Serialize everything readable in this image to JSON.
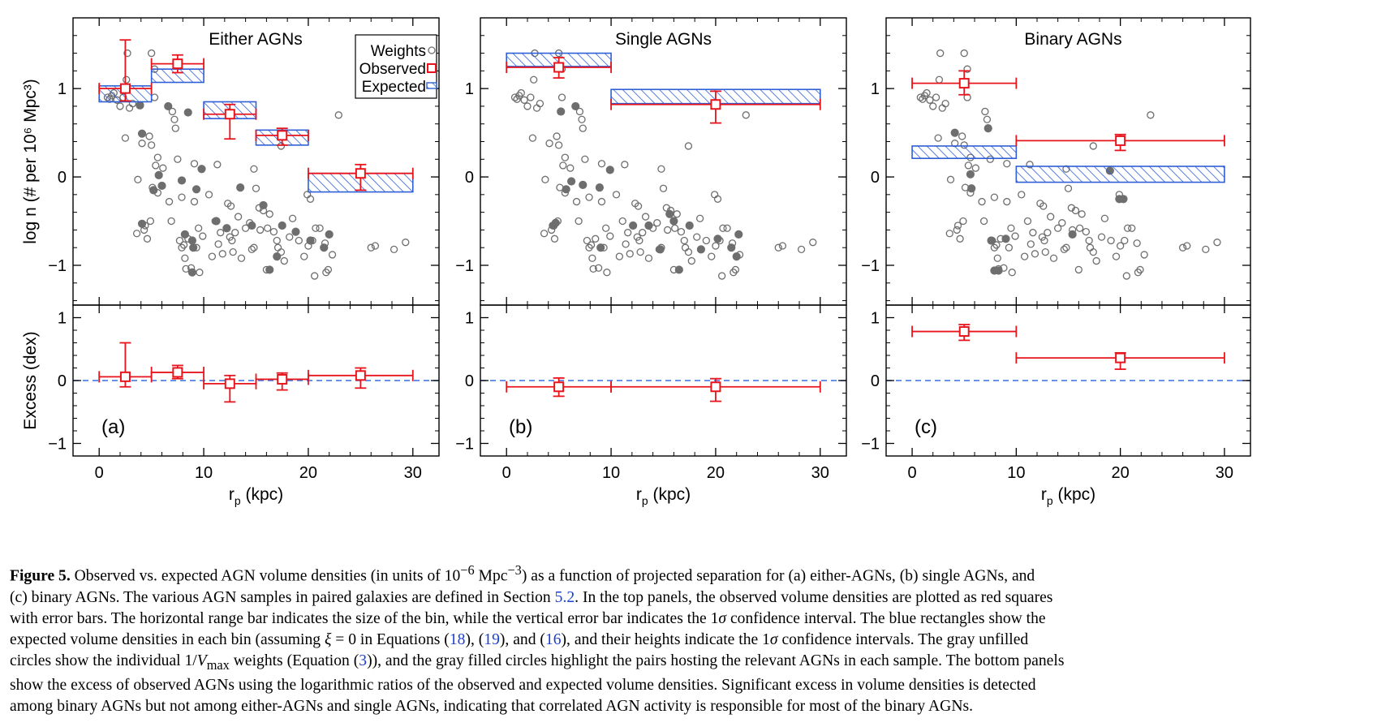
{
  "chart_data": {
    "type": "scatter",
    "panels": [
      {
        "id": "a",
        "title": "Either AGNs",
        "panel_label": "(a)",
        "observed": [
          {
            "xmin": 0,
            "xmax": 5,
            "x": 2.5,
            "y": 1.0,
            "ylo": 0.86,
            "yhi": 1.55
          },
          {
            "xmin": 5,
            "xmax": 10,
            "x": 7.5,
            "y": 1.28,
            "ylo": 1.18,
            "yhi": 1.38
          },
          {
            "xmin": 10,
            "xmax": 15,
            "x": 12.5,
            "y": 0.71,
            "ylo": 0.43,
            "yhi": 0.82
          },
          {
            "xmin": 15,
            "xmax": 20,
            "x": 17.5,
            "y": 0.47,
            "ylo": 0.36,
            "yhi": 0.55
          },
          {
            "xmin": 20,
            "xmax": 30,
            "x": 25,
            "y": 0.04,
            "ylo": -0.15,
            "yhi": 0.14
          }
        ],
        "expected": [
          {
            "xmin": 0,
            "xmax": 5,
            "ylo": 0.85,
            "yhi": 1.03
          },
          {
            "xmin": 5,
            "xmax": 10,
            "ylo": 1.07,
            "yhi": 1.22
          },
          {
            "xmin": 10,
            "xmax": 15,
            "ylo": 0.66,
            "yhi": 0.85
          },
          {
            "xmin": 15,
            "xmax": 20,
            "ylo": 0.36,
            "yhi": 0.53
          },
          {
            "xmin": 20,
            "xmax": 30,
            "ylo": -0.17,
            "yhi": 0.04
          }
        ],
        "excess": [
          {
            "xmin": 0,
            "xmax": 5,
            "x": 2.5,
            "y": 0.06,
            "ylo": -0.1,
            "yhi": 0.6
          },
          {
            "xmin": 5,
            "xmax": 10,
            "x": 7.5,
            "y": 0.13,
            "ylo": 0.03,
            "yhi": 0.24
          },
          {
            "xmin": 10,
            "xmax": 15,
            "x": 12.5,
            "y": -0.05,
            "ylo": -0.34,
            "yhi": 0.08
          },
          {
            "xmin": 15,
            "xmax": 20,
            "x": 17.5,
            "y": 0.02,
            "ylo": -0.15,
            "yhi": 0.12
          },
          {
            "xmin": 20,
            "xmax": 30,
            "x": 25,
            "y": 0.08,
            "ylo": -0.12,
            "yhi": 0.2
          }
        ],
        "filled": [
          [
            3.9,
            0.81
          ],
          [
            4.1,
            0.49
          ],
          [
            4.1,
            -0.53
          ],
          [
            5.2,
            -0.15
          ],
          [
            5.7,
            0.02
          ],
          [
            6.0,
            -0.1
          ],
          [
            6.6,
            0.8
          ],
          [
            7.9,
            -0.04
          ],
          [
            8.2,
            -0.65
          ],
          [
            8.5,
            0.73
          ],
          [
            8.9,
            -0.72
          ],
          [
            9.0,
            -0.8
          ],
          [
            9.3,
            -0.14
          ],
          [
            9.8,
            0.09
          ],
          [
            8.9,
            -1.08
          ],
          [
            11.2,
            -0.5
          ],
          [
            12.2,
            -0.58
          ],
          [
            13.5,
            -0.12
          ],
          [
            14.6,
            -0.55
          ],
          [
            15.7,
            -0.32
          ],
          [
            16.3,
            -1.05
          ],
          [
            17.5,
            -0.55
          ],
          [
            18.8,
            -0.62
          ],
          [
            20.2,
            -0.72
          ],
          [
            21.5,
            -0.8
          ],
          [
            22.0,
            -0.65
          ],
          [
            17.0,
            -0.9
          ]
        ]
      },
      {
        "id": "b",
        "title": "Single AGNs",
        "panel_label": "(b)",
        "observed": [
          {
            "xmin": 0,
            "xmax": 10,
            "x": 5,
            "y": 1.24,
            "ylo": 1.12,
            "yhi": 1.35
          },
          {
            "xmin": 10,
            "xmax": 30,
            "x": 20,
            "y": 0.82,
            "ylo": 0.61,
            "yhi": 0.97
          }
        ],
        "expected": [
          {
            "xmin": 0,
            "xmax": 10,
            "ylo": 1.25,
            "yhi": 1.4
          },
          {
            "xmin": 10,
            "xmax": 30,
            "ylo": 0.83,
            "yhi": 0.99
          }
        ],
        "excess": [
          {
            "xmin": 0,
            "xmax": 10,
            "x": 5,
            "y": -0.1,
            "ylo": -0.25,
            "yhi": 0.04
          },
          {
            "xmin": 10,
            "xmax": 30,
            "x": 20,
            "y": -0.1,
            "ylo": -0.33,
            "yhi": 0.03
          }
        ],
        "filled": [
          [
            4.5,
            -0.55
          ],
          [
            4.7,
            -0.52
          ],
          [
            5.2,
            0.74
          ],
          [
            5.7,
            -0.14
          ],
          [
            6.2,
            -0.05
          ],
          [
            6.6,
            0.8
          ],
          [
            7.3,
            -0.09
          ],
          [
            8.9,
            -0.12
          ],
          [
            9.0,
            -0.8
          ],
          [
            9.9,
            0.08
          ],
          [
            12.1,
            -0.55
          ],
          [
            13.6,
            -0.55
          ],
          [
            14.7,
            -0.82
          ],
          [
            16.0,
            -0.5
          ],
          [
            16.5,
            -1.05
          ],
          [
            17.5,
            -0.55
          ],
          [
            18.6,
            -0.82
          ],
          [
            20.2,
            -0.7
          ],
          [
            21.5,
            -0.8
          ],
          [
            22.2,
            -0.65
          ],
          [
            22.0,
            -0.9
          ],
          [
            15.6,
            -0.42
          ]
        ]
      },
      {
        "id": "c",
        "title": "Binary AGNs",
        "panel_label": "(c)",
        "observed": [
          {
            "xmin": 0,
            "xmax": 10,
            "x": 5,
            "y": 1.06,
            "ylo": 0.93,
            "yhi": 1.2
          },
          {
            "xmin": 10,
            "xmax": 30,
            "x": 20,
            "y": 0.41,
            "ylo": 0.3,
            "yhi": 0.48
          }
        ],
        "expected": [
          {
            "xmin": 0,
            "xmax": 10,
            "ylo": 0.21,
            "yhi": 0.35
          },
          {
            "xmin": 10,
            "xmax": 30,
            "ylo": -0.06,
            "yhi": 0.12
          }
        ],
        "excess": [
          {
            "xmin": 0,
            "xmax": 10,
            "x": 5,
            "y": 0.78,
            "ylo": 0.64,
            "yhi": 0.89
          },
          {
            "xmin": 10,
            "xmax": 30,
            "x": 20,
            "y": 0.36,
            "ylo": 0.18,
            "yhi": 0.44
          }
        ],
        "filled": [
          [
            4.1,
            0.5
          ],
          [
            5.6,
            0.03
          ],
          [
            7.3,
            0.55
          ],
          [
            7.6,
            -0.72
          ],
          [
            7.9,
            -1.06
          ],
          [
            8.3,
            -1.06
          ],
          [
            9.0,
            -0.7
          ],
          [
            15.4,
            -0.65
          ],
          [
            19.0,
            0.07
          ],
          [
            19.9,
            -0.25
          ],
          [
            20.3,
            -0.25
          ],
          [
            5.7,
            -0.13
          ]
        ]
      }
    ],
    "weights": [
      [
        0.8,
        0.9
      ],
      [
        1.0,
        0.88
      ],
      [
        1.2,
        0.92
      ],
      [
        1.4,
        0.95
      ],
      [
        1.7,
        0.87
      ],
      [
        2.0,
        0.8
      ],
      [
        2.3,
        0.9
      ],
      [
        2.6,
        1.1
      ],
      [
        2.7,
        1.4
      ],
      [
        2.5,
        0.44
      ],
      [
        2.9,
        0.78
      ],
      [
        3.2,
        0.83
      ],
      [
        3.7,
        -0.03
      ],
      [
        3.6,
        -0.64
      ],
      [
        4.1,
        0.38
      ],
      [
        4.3,
        -0.6
      ],
      [
        4.4,
        -0.55
      ],
      [
        4.6,
        -0.7
      ],
      [
        4.8,
        0.46
      ],
      [
        4.9,
        -0.5
      ],
      [
        5.0,
        0.36
      ],
      [
        5.1,
        -0.12
      ],
      [
        5.3,
        0.9
      ],
      [
        5.6,
        0.22
      ],
      [
        5.4,
        0.13
      ],
      [
        5.6,
        -0.18
      ],
      [
        6.1,
        0.1
      ],
      [
        5.0,
        1.4
      ],
      [
        5.3,
        1.22
      ],
      [
        6.7,
        -0.28
      ],
      [
        6.9,
        -0.5
      ],
      [
        7.0,
        0.74
      ],
      [
        7.2,
        0.65
      ],
      [
        7.3,
        0.55
      ],
      [
        7.5,
        0.2
      ],
      [
        7.7,
        -0.72
      ],
      [
        7.9,
        -0.8
      ],
      [
        7.9,
        -0.23
      ],
      [
        8.1,
        -0.77
      ],
      [
        8.2,
        -0.92
      ],
      [
        8.3,
        -1.04
      ],
      [
        8.5,
        -0.7
      ],
      [
        8.8,
        -1.03
      ],
      [
        9.1,
        0.15
      ],
      [
        9.1,
        -0.28
      ],
      [
        9.3,
        -0.8
      ],
      [
        9.5,
        -0.58
      ],
      [
        9.6,
        -1.08
      ],
      [
        9.9,
        -0.67
      ],
      [
        10.5,
        -0.2
      ],
      [
        10.8,
        -0.9
      ],
      [
        11.1,
        -0.5
      ],
      [
        11.3,
        0.14
      ],
      [
        11.4,
        -0.76
      ],
      [
        11.6,
        -0.63
      ],
      [
        11.8,
        -0.87
      ],
      [
        12.3,
        -0.3
      ],
      [
        12.6,
        -0.33
      ],
      [
        12.8,
        -0.85
      ],
      [
        12.5,
        -0.68
      ],
      [
        12.7,
        -0.72
      ],
      [
        13.0,
        -0.63
      ],
      [
        13.3,
        -0.45
      ],
      [
        13.6,
        -0.92
      ],
      [
        14.0,
        -0.58
      ],
      [
        14.4,
        -0.52
      ],
      [
        14.6,
        -0.82
      ],
      [
        14.8,
        -0.8
      ],
      [
        15.0,
        -0.13
      ],
      [
        15.3,
        -0.35
      ],
      [
        15.4,
        -0.6
      ],
      [
        15.7,
        -0.38
      ],
      [
        16.0,
        -1.05
      ],
      [
        16.1,
        -0.58
      ],
      [
        16.3,
        -0.42
      ],
      [
        16.7,
        -0.62
      ],
      [
        17.0,
        -0.72
      ],
      [
        17.1,
        -0.8
      ],
      [
        17.4,
        -0.85
      ],
      [
        17.7,
        -0.95
      ],
      [
        18.2,
        -0.68
      ],
      [
        18.5,
        -0.47
      ],
      [
        19.1,
        -0.72
      ],
      [
        19.6,
        -0.9
      ],
      [
        19.9,
        -0.2
      ],
      [
        20.0,
        -0.78
      ],
      [
        20.2,
        -0.25
      ],
      [
        20.4,
        -0.72
      ],
      [
        20.6,
        -1.12
      ],
      [
        20.7,
        -0.58
      ],
      [
        21.1,
        -0.58
      ],
      [
        21.6,
        -0.75
      ],
      [
        21.7,
        -1.08
      ],
      [
        21.9,
        -1.05
      ],
      [
        22.3,
        -0.88
      ],
      [
        26.0,
        -0.8
      ],
      [
        26.4,
        -0.78
      ],
      [
        28.2,
        -0.82
      ],
      [
        29.3,
        -0.74
      ],
      [
        22.9,
        0.7
      ],
      [
        17.4,
        0.35
      ],
      [
        14.8,
        0.09
      ]
    ],
    "top_panel": {
      "ylabel": "log n (# per 10⁶ Mpc³)",
      "ylim": [
        -1.45,
        1.8
      ],
      "yticks": [
        -1,
        0,
        1
      ],
      "ytick_labels": [
        "−1",
        "0",
        "1"
      ]
    },
    "bottom_panel": {
      "ylabel": "Excess (dex)",
      "ylim": [
        -1.2,
        1.2
      ],
      "yticks": [
        -1,
        0,
        1
      ],
      "ytick_labels": [
        "−1",
        "0",
        "1"
      ],
      "reference_line": 0
    },
    "xaxis": {
      "xlabel": "r",
      "xlabel_sub": "p",
      "xlabel_tail": " (kpc)",
      "xlim": [
        -2.5,
        32.5
      ],
      "xticks": [
        0,
        10,
        20,
        30
      ],
      "xtick_labels": [
        "0",
        "10",
        "20",
        "30"
      ]
    },
    "legend": {
      "position": "top-right",
      "entries": [
        {
          "label": "Weights",
          "symbol": "open-circle"
        },
        {
          "label": "Observed",
          "symbol": "open-square"
        },
        {
          "label": "Expected",
          "symbol": "hatched-rect"
        }
      ]
    },
    "colors": {
      "observed": "#e8141c",
      "expected": "#2f5fd6",
      "weights": "#6e6e6e",
      "reference_line": "#3a6fd8"
    }
  },
  "caption": {
    "label": "Figure 5.",
    "l1": " Observed vs. expected AGN volume densities (in units of 10",
    "sup1": "−6",
    "l1b": " Mpc",
    "sup2": "−3",
    "l1c": ") as a function of projected separation for (a) either-AGNs, (b) single AGNs, and",
    "l2a": "(c) binary AGNs. The various AGN samples in paired galaxies are defined in Section ",
    "ref1": "5.2",
    "l2b": ". In the top panels, the observed volume densities are plotted as red squares",
    "l3a": "with error bars. The horizontal range bar indicates the size of the bin, while the vertical error bar indicates the 1",
    "sigma1": "σ",
    "l3b": " confidence interval. The blue rectangles show the",
    "l4a": "expected volume densities in each bin (assuming ",
    "xi": "ξ",
    "l4b": " = 0 in Equations (",
    "ref2": "18",
    "l4c": "), (",
    "ref3": "19",
    "l4d": "), and (",
    "ref4": "16",
    "l4e": "), and their heights indicate the 1",
    "sigma2": "σ",
    "l4f": " confidence intervals. The gray unfilled",
    "l5a": "circles show the individual 1/",
    "vmax": "V",
    "vmax_sub": "max",
    "l5b": " weights (Equation (",
    "ref5": "3",
    "l5c": ")), and the gray filled circles highlight the pairs hosting the relevant AGNs in each sample. The bottom panels",
    "l6": "show the excess of observed AGNs using the logarithmic ratios of the observed and expected volume densities. Significant excess in volume densities is detected",
    "l7": "among binary AGNs but not among either-AGNs and single AGNs, indicating that correlated AGN activity is responsible for most of the binary AGNs."
  }
}
